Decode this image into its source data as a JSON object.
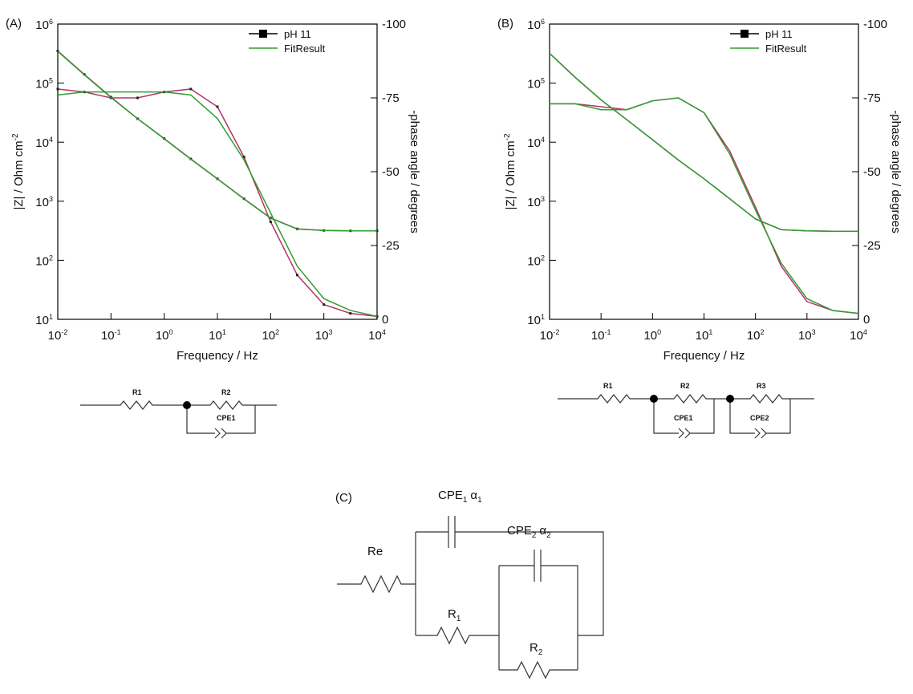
{
  "chart_data": [
    {
      "type": "line",
      "label": "(A)",
      "xlabel": "Frequency / Hz",
      "ylabel": "|Z| / Ohm cm",
      "ylabel_sup": "-2",
      "y2label": "-phase angle / degrees",
      "xscale": "log",
      "yscale": "log",
      "x": [
        0.01,
        0.0316,
        0.1,
        0.316,
        1,
        3.16,
        10,
        31.6,
        100,
        316,
        1000,
        3160,
        10000
      ],
      "series": [
        {
          "name": "pH 11",
          "color": "#b8306a",
          "markers": true,
          "values": [
            350000,
            140000,
            58000,
            25000,
            11500,
            5200,
            2400,
            1100,
            520,
            340,
            320,
            315,
            315
          ],
          "y2_values": [
            -78,
            -77,
            -75,
            -75,
            -77,
            -78,
            -72,
            -55,
            -33,
            -15,
            -5,
            -2,
            -1
          ]
        },
        {
          "name": "FitResult",
          "color": "#2e9e2e",
          "markers": false,
          "values": [
            345000,
            138000,
            57000,
            25000,
            11400,
            5150,
            2380,
            1090,
            515,
            338,
            320,
            315,
            315
          ],
          "y2_values": [
            -76,
            -77,
            -77,
            -77,
            -77,
            -76,
            -68,
            -54,
            -36,
            -18,
            -7,
            -3,
            -1
          ]
        }
      ],
      "xlim": [
        0.01,
        10000
      ],
      "xticks": [
        {
          "value": 0.01,
          "label": "10",
          "exponent": "-2"
        },
        {
          "value": 0.1,
          "label": "10",
          "exponent": "-1"
        },
        {
          "value": 1,
          "label": "10",
          "exponent": "0"
        },
        {
          "value": 10,
          "label": "10",
          "exponent": "1"
        },
        {
          "value": 100,
          "label": "10",
          "exponent": "2"
        },
        {
          "value": 1000,
          "label": "10",
          "exponent": "3"
        },
        {
          "value": 10000,
          "label": "10",
          "exponent": "4"
        }
      ],
      "ylim": [
        10,
        1000000
      ],
      "yticks": [
        {
          "value": 10,
          "label": "10",
          "exponent": "1"
        },
        {
          "value": 100,
          "label": "10",
          "exponent": "2"
        },
        {
          "value": 1000,
          "label": "10",
          "exponent": "3"
        },
        {
          "value": 10000,
          "label": "10",
          "exponent": "4"
        },
        {
          "value": 100000,
          "label": "10",
          "exponent": "5"
        },
        {
          "value": 1000000,
          "label": "10",
          "exponent": "6"
        }
      ],
      "y2lim": [
        0,
        -100
      ],
      "y2ticks": [
        -100,
        -75,
        -50,
        -25,
        0
      ],
      "legend": "top-right"
    },
    {
      "type": "line",
      "label": "(B)",
      "xlabel": "Frequency / Hz",
      "ylabel": "|Z| / Ohm cm",
      "ylabel_sup": "-2",
      "y2label": "-phase angle / degrees",
      "xscale": "log",
      "yscale": "log",
      "x": [
        0.01,
        0.0316,
        0.1,
        0.316,
        1,
        3.16,
        10,
        31.6,
        100,
        316,
        1000,
        3160,
        10000
      ],
      "series": [
        {
          "name": "pH 11",
          "color": "#b8306a",
          "markers": false,
          "values": [
            320000,
            125000,
            52000,
            24000,
            11000,
            5000,
            2400,
            1100,
            500,
            330,
            315,
            310,
            310
          ],
          "y2_values": [
            -73,
            -73,
            -72,
            -71,
            -74,
            -75,
            -70,
            -57,
            -38,
            -18,
            -6,
            -3,
            -2
          ]
        },
        {
          "name": "FitResult",
          "color": "#2e9e2e",
          "markers": false,
          "values": [
            318000,
            124000,
            52000,
            24000,
            11000,
            5000,
            2400,
            1100,
            500,
            330,
            315,
            310,
            310
          ],
          "y2_values": [
            -73,
            -73,
            -71,
            -71,
            -74,
            -75,
            -70,
            -56,
            -37,
            -19,
            -7,
            -3,
            -2
          ]
        }
      ],
      "xlim": [
        0.01,
        10000
      ],
      "xticks": [
        {
          "value": 0.01,
          "label": "10",
          "exponent": "-2"
        },
        {
          "value": 0.1,
          "label": "10",
          "exponent": "-1"
        },
        {
          "value": 1,
          "label": "10",
          "exponent": "0"
        },
        {
          "value": 10,
          "label": "10",
          "exponent": "1"
        },
        {
          "value": 100,
          "label": "10",
          "exponent": "2"
        },
        {
          "value": 1000,
          "label": "10",
          "exponent": "3"
        },
        {
          "value": 10000,
          "label": "10",
          "exponent": "4"
        }
      ],
      "ylim": [
        10,
        1000000
      ],
      "yticks": [
        {
          "value": 10,
          "label": "10",
          "exponent": "1"
        },
        {
          "value": 100,
          "label": "10",
          "exponent": "2"
        },
        {
          "value": 1000,
          "label": "10",
          "exponent": "3"
        },
        {
          "value": 10000,
          "label": "10",
          "exponent": "4"
        },
        {
          "value": 100000,
          "label": "10",
          "exponent": "5"
        },
        {
          "value": 1000000,
          "label": "10",
          "exponent": "6"
        }
      ],
      "y2lim": [
        0,
        -100
      ],
      "y2ticks": [
        -100,
        -75,
        -50,
        -25,
        0
      ],
      "legend": "top-right"
    }
  ],
  "circuits": {
    "a": {
      "r1": "R1",
      "r2": "R2",
      "cpe1": "CPE1"
    },
    "b": {
      "r1": "R1",
      "r2": "R2",
      "r3": "R3",
      "cpe1": "CPE1",
      "cpe2": "CPE2"
    },
    "c": {
      "label": "(C)",
      "re": "Re",
      "cpe1": "CPE",
      "cpe1_sub": "1",
      "alpha1": "α",
      "alpha1_sub": "1",
      "cpe2": "CPE",
      "cpe2_sub": "2",
      "alpha2": "α",
      "alpha2_sub": "2",
      "r1": "R",
      "r1_sub": "1",
      "r2": "R",
      "r2_sub": "2"
    }
  }
}
